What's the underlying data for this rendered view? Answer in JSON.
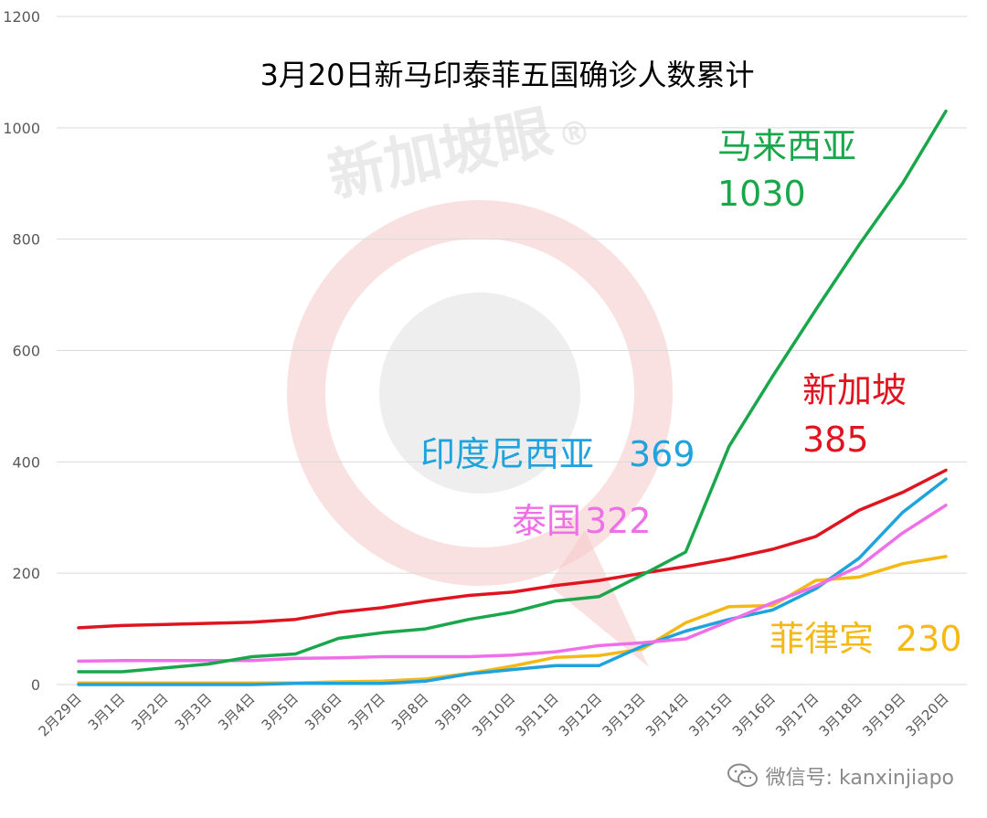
{
  "chart_data": {
    "type": "line",
    "title": "3月20日新马印泰菲五国确诊人数累计",
    "categories": [
      "2月29日",
      "3月1日",
      "3月2日",
      "3月3日",
      "3月4日",
      "3月5日",
      "3月6日",
      "3月7日",
      "3月8日",
      "3月9日",
      "3月10日",
      "3月11日",
      "3月12日",
      "3月13日",
      "3月14日",
      "3月15日",
      "3月16日",
      "3月17日",
      "3月18日",
      "3月19日",
      "3月20日"
    ],
    "y_ticks": [
      "0",
      "200",
      "400",
      "600",
      "800",
      "1000",
      "1200"
    ],
    "ylim": [
      0,
      1200
    ],
    "grid": true,
    "series": [
      {
        "name": "马来西亚",
        "color": "#1aa64a",
        "values": [
          23,
          23,
          30,
          37,
          50,
          55,
          83,
          93,
          100,
          117,
          130,
          150,
          158,
          197,
          238,
          428,
          553,
          673,
          790,
          900,
          1030
        ]
      },
      {
        "name": "新加坡",
        "color": "#e0141e",
        "values": [
          102,
          106,
          108,
          110,
          112,
          117,
          130,
          138,
          150,
          160,
          166,
          178,
          187,
          200,
          212,
          226,
          243,
          266,
          313,
          345,
          385
        ]
      },
      {
        "name": "印度尼西亚",
        "color": "#1ea3dc",
        "values": [
          0,
          0,
          0,
          0,
          0,
          2,
          2,
          2,
          6,
          19,
          27,
          34,
          34,
          69,
          96,
          117,
          134,
          172,
          227,
          309,
          369
        ]
      },
      {
        "name": "泰国",
        "color": "#ef6fe8",
        "values": [
          42,
          43,
          43,
          43,
          43,
          47,
          48,
          50,
          50,
          50,
          53,
          59,
          70,
          75,
          82,
          114,
          147,
          177,
          212,
          272,
          322
        ]
      },
      {
        "name": "菲律宾",
        "color": "#f5b915",
        "values": [
          3,
          3,
          3,
          3,
          3,
          3,
          5,
          6,
          10,
          20,
          33,
          49,
          52,
          64,
          111,
          140,
          142,
          187,
          193,
          217,
          230
        ]
      }
    ],
    "annotations": [
      {
        "name": "马来西亚",
        "value": "1030"
      },
      {
        "name": "新加坡",
        "value": "385"
      },
      {
        "name": "印度尼西亚",
        "value": "369"
      },
      {
        "name": "泰国",
        "value": "322"
      },
      {
        "name": "菲律宾",
        "value": "230"
      }
    ]
  },
  "watermark": {
    "text": "新加坡眼",
    "mark": "®"
  },
  "footer": {
    "icon": "wechat-icon",
    "text": "微信号: kanxinjiapo"
  }
}
